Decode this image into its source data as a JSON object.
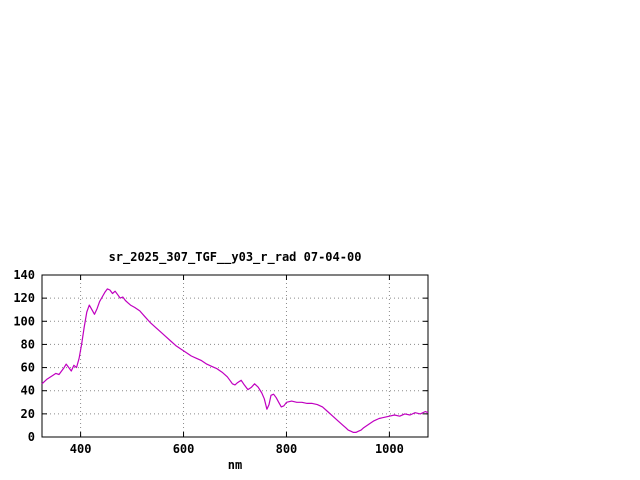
{
  "window": {
    "background": "#ffffff"
  },
  "colors": {
    "frame": "#000000",
    "grid": "#8a8a8a",
    "text": "#000000",
    "line": "#c000c0"
  },
  "chart_data": {
    "type": "line",
    "title": "sr_2025_307_TGF__y03_r_rad 07-04-00",
    "xlabel": "nm",
    "ylabel": "",
    "xlim": [
      325,
      1075
    ],
    "ylim": [
      0,
      140
    ],
    "xticks": [
      400,
      600,
      800,
      1000
    ],
    "yticks": [
      0,
      20,
      40,
      60,
      80,
      100,
      120,
      140
    ],
    "grid": true,
    "legend": "none",
    "series": [
      {
        "color": "#c000c0",
        "x": [
          325,
          335,
          345,
          352,
          358,
          363,
          368,
          372,
          377,
          382,
          387,
          392,
          397,
          402,
          407,
          412,
          417,
          422,
          427,
          432,
          437,
          442,
          447,
          452,
          457,
          462,
          467,
          472,
          477,
          482,
          487,
          492,
          497,
          505,
          515,
          525,
          535,
          545,
          555,
          565,
          575,
          585,
          595,
          605,
          615,
          625,
          635,
          645,
          655,
          665,
          675,
          685,
          690,
          695,
          700,
          705,
          712,
          718,
          725,
          732,
          738,
          745,
          752,
          757,
          762,
          766,
          770,
          775,
          780,
          785,
          790,
          795,
          800,
          810,
          820,
          830,
          840,
          850,
          860,
          870,
          880,
          890,
          900,
          910,
          915,
          920,
          925,
          930,
          935,
          940,
          945,
          950,
          960,
          970,
          980,
          990,
          1000,
          1010,
          1020,
          1030,
          1040,
          1050,
          1060,
          1070,
          1075
        ],
        "y": [
          46,
          50,
          53,
          55,
          54,
          57,
          60,
          63,
          60,
          57,
          62,
          60,
          68,
          80,
          95,
          108,
          114,
          110,
          106,
          111,
          117,
          121,
          125,
          128,
          127,
          124,
          126,
          123,
          120,
          121,
          118,
          116,
          114,
          112,
          109,
          104,
          99,
          95,
          91,
          87,
          83,
          79,
          76,
          73,
          70,
          68,
          66,
          63,
          61,
          59,
          56,
          52,
          49,
          46,
          45,
          47,
          49,
          45,
          41,
          43,
          46,
          43,
          38,
          33,
          24,
          28,
          36,
          37,
          34,
          30,
          26,
          27,
          30,
          31,
          30,
          30,
          29,
          29,
          28,
          26,
          22,
          18,
          14,
          10,
          8,
          6,
          5,
          4,
          4,
          5,
          6,
          8,
          11,
          14,
          16,
          17,
          18,
          19,
          18,
          20,
          19,
          21,
          20,
          22,
          21
        ]
      }
    ]
  }
}
